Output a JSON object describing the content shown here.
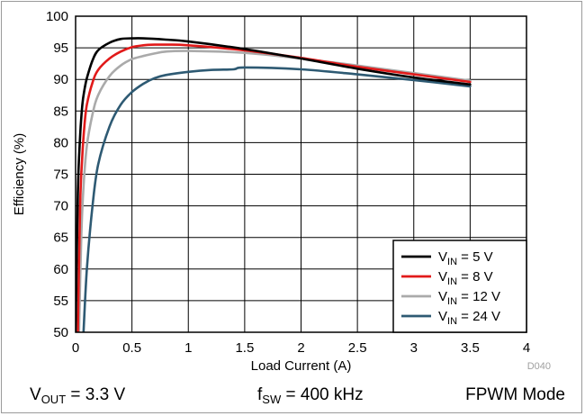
{
  "chart_data": {
    "type": "line",
    "xlabel": "Load Current (A)",
    "ylabel": "Efficiency (%)",
    "xlim": [
      0,
      4
    ],
    "ylim": [
      50,
      100
    ],
    "x_ticks": [
      "0",
      "0.5",
      "1",
      "1.5",
      "2",
      "2.5",
      "3",
      "3.5",
      "4"
    ],
    "y_ticks": [
      "50",
      "55",
      "60",
      "65",
      "70",
      "75",
      "80",
      "85",
      "90",
      "95",
      "100"
    ],
    "grid": true,
    "legend_position": "bottom-right",
    "figure_id": "D040",
    "series": [
      {
        "name_main": "V",
        "name_sub": "IN",
        "name_tail": " = 5 V",
        "color": "#000000",
        "x": [
          0.0,
          0.02,
          0.04,
          0.06,
          0.08,
          0.1,
          0.15,
          0.2,
          0.3,
          0.4,
          0.5,
          0.6,
          0.8,
          1.0,
          1.5,
          2.0,
          2.5,
          3.0,
          3.5
        ],
        "y": [
          50,
          72,
          81,
          86,
          88.5,
          90.2,
          93,
          94.6,
          95.8,
          96.4,
          96.5,
          96.5,
          96.3,
          96,
          94.8,
          93.3,
          91.7,
          90.3,
          89.2
        ]
      },
      {
        "name_main": "V",
        "name_sub": "IN",
        "name_tail": " = 8 V",
        "color": "#e11a1a",
        "x": [
          0.02,
          0.04,
          0.06,
          0.08,
          0.1,
          0.15,
          0.2,
          0.3,
          0.4,
          0.5,
          0.6,
          0.7,
          0.8,
          1.0,
          1.5,
          2.0,
          2.5,
          3.0,
          3.5
        ],
        "y": [
          50,
          70,
          78,
          83,
          86,
          89.5,
          91.5,
          93.3,
          94.4,
          95.1,
          95.4,
          95.5,
          95.5,
          95.4,
          94.6,
          93.4,
          92,
          90.8,
          89.6
        ]
      },
      {
        "name_main": "V",
        "name_sub": "IN",
        "name_tail": " = 12 V",
        "color": "#aaaaaa",
        "x": [
          0.03,
          0.05,
          0.07,
          0.1,
          0.15,
          0.2,
          0.3,
          0.4,
          0.5,
          0.6,
          0.7,
          0.8,
          1.0,
          1.5,
          2.0,
          2.5,
          3.0,
          3.5
        ],
        "y": [
          50,
          65,
          73,
          79.5,
          84.5,
          87.5,
          90.5,
          92.2,
          93.2,
          93.7,
          94.1,
          94.4,
          94.5,
          94.2,
          93.3,
          92.2,
          91,
          89.8
        ]
      },
      {
        "name_main": "V",
        "name_sub": "IN",
        "name_tail": " = 24 V",
        "color": "#2e5a73",
        "x": [
          0.07,
          0.1,
          0.15,
          0.2,
          0.3,
          0.4,
          0.5,
          0.6,
          0.7,
          0.8,
          1.0,
          1.2,
          1.4,
          1.5,
          2.0,
          2.5,
          3.0,
          3.5
        ],
        "y": [
          50,
          60,
          70,
          76.5,
          82.5,
          86,
          88,
          89.3,
          90.2,
          90.7,
          91.2,
          91.5,
          91.6,
          91.9,
          91.6,
          90.8,
          89.9,
          88.9
        ]
      }
    ]
  },
  "footer": {
    "vout_main": "V",
    "vout_sub": "OUT",
    "vout_tail": " = 3.3 V",
    "fsw_main": "f",
    "fsw_sub": "SW",
    "fsw_tail": " = 400 kHz",
    "mode": "FPWM Mode"
  }
}
